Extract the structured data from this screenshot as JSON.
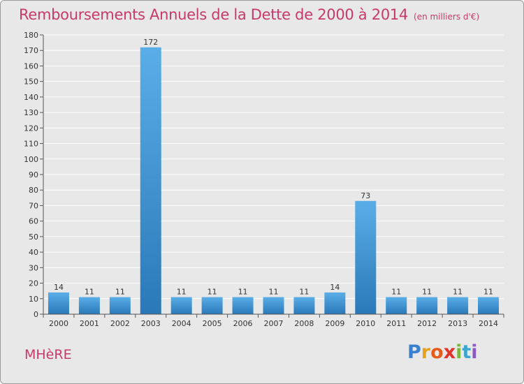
{
  "title": "Remboursements Annuels de la Dette de 2000 à 2014",
  "unit": "(en milliers d'€)",
  "commune": "MHèRE",
  "logo": [
    "P",
    "r",
    "o",
    "x",
    "i",
    "t",
    "i"
  ],
  "colors": {
    "title": "#c8396b",
    "bar_top": "#5aaee8",
    "bar_bottom": "#2a78b8",
    "background": "#e8e8e8"
  },
  "chart_data": {
    "type": "bar",
    "categories": [
      "2000",
      "2001",
      "2002",
      "2003",
      "2004",
      "2005",
      "2006",
      "2007",
      "2008",
      "2009",
      "2010",
      "2011",
      "2012",
      "2013",
      "2014"
    ],
    "values": [
      14,
      11,
      11,
      172,
      11,
      11,
      11,
      11,
      11,
      14,
      73,
      11,
      11,
      11,
      11
    ],
    "ylim": [
      0,
      180
    ],
    "yticks": [
      0,
      10,
      20,
      30,
      40,
      50,
      60,
      70,
      80,
      90,
      100,
      110,
      120,
      130,
      140,
      150,
      160,
      170,
      180
    ],
    "grid": true,
    "data_labels": true
  }
}
